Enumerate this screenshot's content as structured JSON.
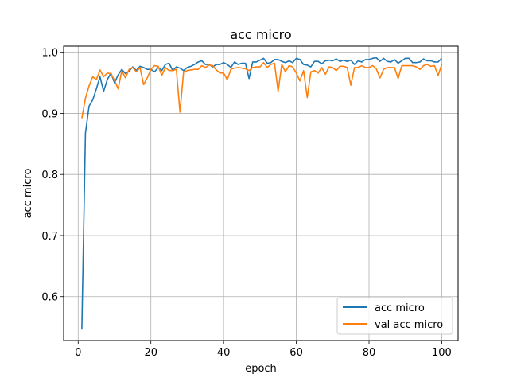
{
  "chart_data": {
    "type": "line",
    "title": "acc micro",
    "xlabel": "epoch",
    "ylabel": "acc micro",
    "xlim": [
      -4,
      104.5
    ],
    "ylim": [
      0.528,
      1.01
    ],
    "xticks": [
      0,
      20,
      40,
      60,
      80,
      100
    ],
    "yticks": [
      0.6,
      0.7,
      0.8,
      0.9,
      1.0
    ],
    "xtick_labels": [
      "0",
      "20",
      "40",
      "60",
      "80",
      "100"
    ],
    "ytick_labels": [
      "0.6",
      "0.7",
      "0.8",
      "0.9",
      "1.0"
    ],
    "grid": true,
    "legend_position": "lower-right",
    "x": [
      1,
      2,
      3,
      4,
      5,
      6,
      7,
      8,
      9,
      10,
      11,
      12,
      13,
      14,
      15,
      16,
      17,
      18,
      19,
      20,
      21,
      22,
      23,
      24,
      25,
      26,
      27,
      28,
      29,
      30,
      31,
      32,
      33,
      34,
      35,
      36,
      37,
      38,
      39,
      40,
      41,
      42,
      43,
      44,
      45,
      46,
      47,
      48,
      49,
      50,
      51,
      52,
      53,
      54,
      55,
      56,
      57,
      58,
      59,
      60,
      61,
      62,
      63,
      64,
      65,
      66,
      67,
      68,
      69,
      70,
      71,
      72,
      73,
      74,
      75,
      76,
      77,
      78,
      79,
      80,
      81,
      82,
      83,
      84,
      85,
      86,
      87,
      88,
      89,
      90,
      91,
      92,
      93,
      94,
      95,
      96,
      97,
      98,
      99,
      100
    ],
    "series": [
      {
        "name": "acc micro",
        "color": "#1f77b4",
        "values": [
          0.546,
          0.868,
          0.912,
          0.922,
          0.94,
          0.96,
          0.936,
          0.955,
          0.966,
          0.95,
          0.963,
          0.972,
          0.965,
          0.969,
          0.976,
          0.97,
          0.977,
          0.975,
          0.972,
          0.972,
          0.968,
          0.975,
          0.97,
          0.98,
          0.982,
          0.97,
          0.976,
          0.974,
          0.97,
          0.975,
          0.977,
          0.98,
          0.984,
          0.986,
          0.98,
          0.98,
          0.976,
          0.98,
          0.98,
          0.983,
          0.98,
          0.975,
          0.984,
          0.98,
          0.982,
          0.982,
          0.957,
          0.984,
          0.984,
          0.987,
          0.99,
          0.982,
          0.983,
          0.988,
          0.988,
          0.985,
          0.983,
          0.986,
          0.983,
          0.99,
          0.988,
          0.98,
          0.979,
          0.976,
          0.985,
          0.985,
          0.981,
          0.986,
          0.987,
          0.986,
          0.989,
          0.985,
          0.987,
          0.985,
          0.987,
          0.98,
          0.986,
          0.984,
          0.988,
          0.988,
          0.99,
          0.991,
          0.985,
          0.99,
          0.985,
          0.984,
          0.988,
          0.982,
          0.986,
          0.99,
          0.99,
          0.983,
          0.983,
          0.984,
          0.989,
          0.986,
          0.986,
          0.984,
          0.984,
          0.99
        ]
      },
      {
        "name": "val acc micro",
        "color": "#ff7f0e",
        "values": [
          0.892,
          0.925,
          0.945,
          0.96,
          0.955,
          0.971,
          0.96,
          0.966,
          0.965,
          0.954,
          0.94,
          0.97,
          0.958,
          0.972,
          0.975,
          0.968,
          0.975,
          0.947,
          0.958,
          0.972,
          0.978,
          0.977,
          0.962,
          0.975,
          0.97,
          0.97,
          0.972,
          0.902,
          0.968,
          0.97,
          0.971,
          0.972,
          0.972,
          0.978,
          0.975,
          0.979,
          0.978,
          0.971,
          0.966,
          0.966,
          0.955,
          0.972,
          0.974,
          0.975,
          0.974,
          0.973,
          0.97,
          0.975,
          0.976,
          0.976,
          0.983,
          0.975,
          0.98,
          0.982,
          0.936,
          0.98,
          0.968,
          0.978,
          0.976,
          0.966,
          0.953,
          0.97,
          0.926,
          0.968,
          0.97,
          0.966,
          0.975,
          0.964,
          0.976,
          0.975,
          0.97,
          0.977,
          0.977,
          0.975,
          0.946,
          0.975,
          0.975,
          0.978,
          0.975,
          0.975,
          0.978,
          0.973,
          0.958,
          0.972,
          0.975,
          0.975,
          0.975,
          0.957,
          0.978,
          0.978,
          0.978,
          0.978,
          0.976,
          0.972,
          0.978,
          0.98,
          0.977,
          0.978,
          0.962,
          0.98
        ]
      }
    ]
  }
}
